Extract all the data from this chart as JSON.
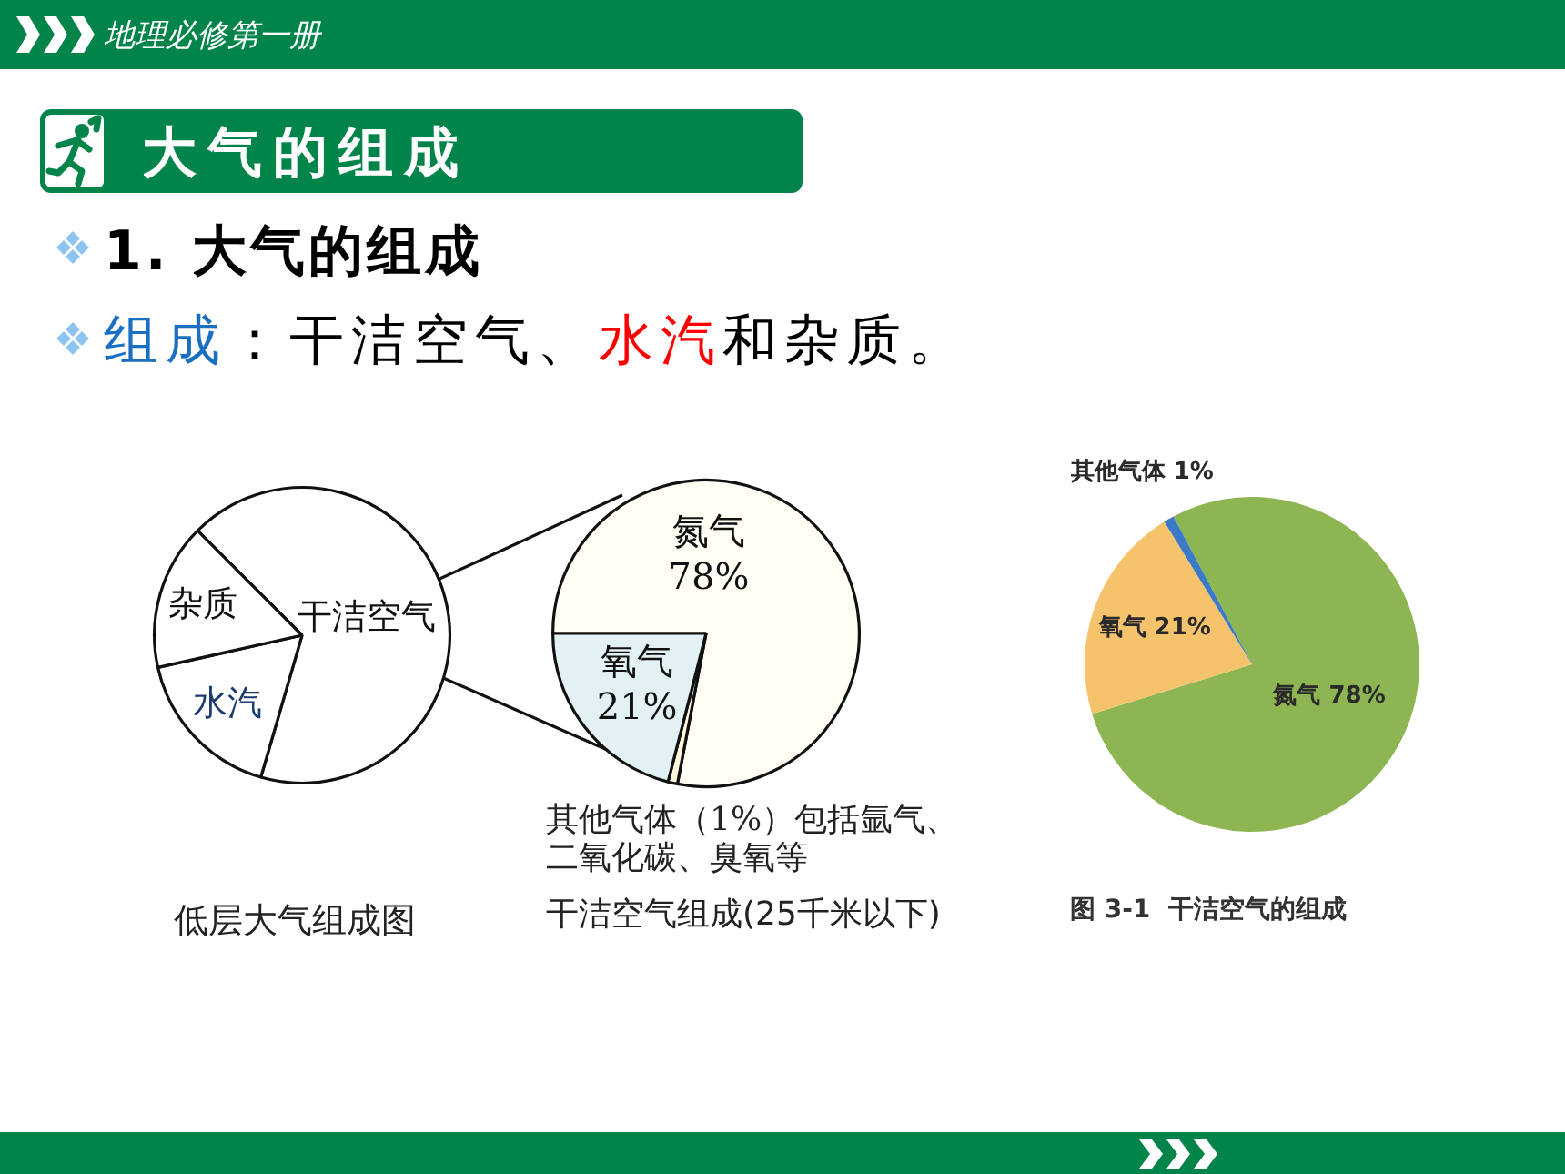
{
  "chart_data": [
    {
      "type": "pie",
      "title": "低层大气组成图",
      "categories": [
        "干洁空气",
        "水汽",
        "杂质"
      ],
      "values": [
        67,
        17,
        16
      ],
      "colors": [
        "#ffffff",
        "#ffffff",
        "#ffffff"
      ],
      "annotations": [
        "地理必修第一册",
        "大气的组成",
        "1. 大气的组成",
        "组成",
        "：干洁空气、",
        "水汽",
        "和杂质。"
      ]
    },
    {
      "type": "pie",
      "title": "干洁空气组成(25千米以下)",
      "categories": [
        "氮气",
        null,
        "氧气"
      ],
      "values": [
        78,
        1,
        21
      ],
      "value_labels": [
        "78%",
        null,
        "21%"
      ],
      "colors": [
        "#fffdf4",
        "#fff8dc",
        "#e2f1f4"
      ],
      "annotations": [
        "其他气体（1%）包括氩气、二氧化碳、臭氧等"
      ]
    },
    {
      "type": "pie",
      "title": "图 3-1  干洁空气的组成",
      "categories": [
        "氮气",
        "氧气",
        "其他气体"
      ],
      "values": [
        78,
        21,
        1
      ],
      "value_labels": [
        "78%",
        "21%",
        "1%"
      ],
      "colors": [
        "#8db652",
        "#f4c36b",
        "#3c79c6"
      ]
    }
  ]
}
